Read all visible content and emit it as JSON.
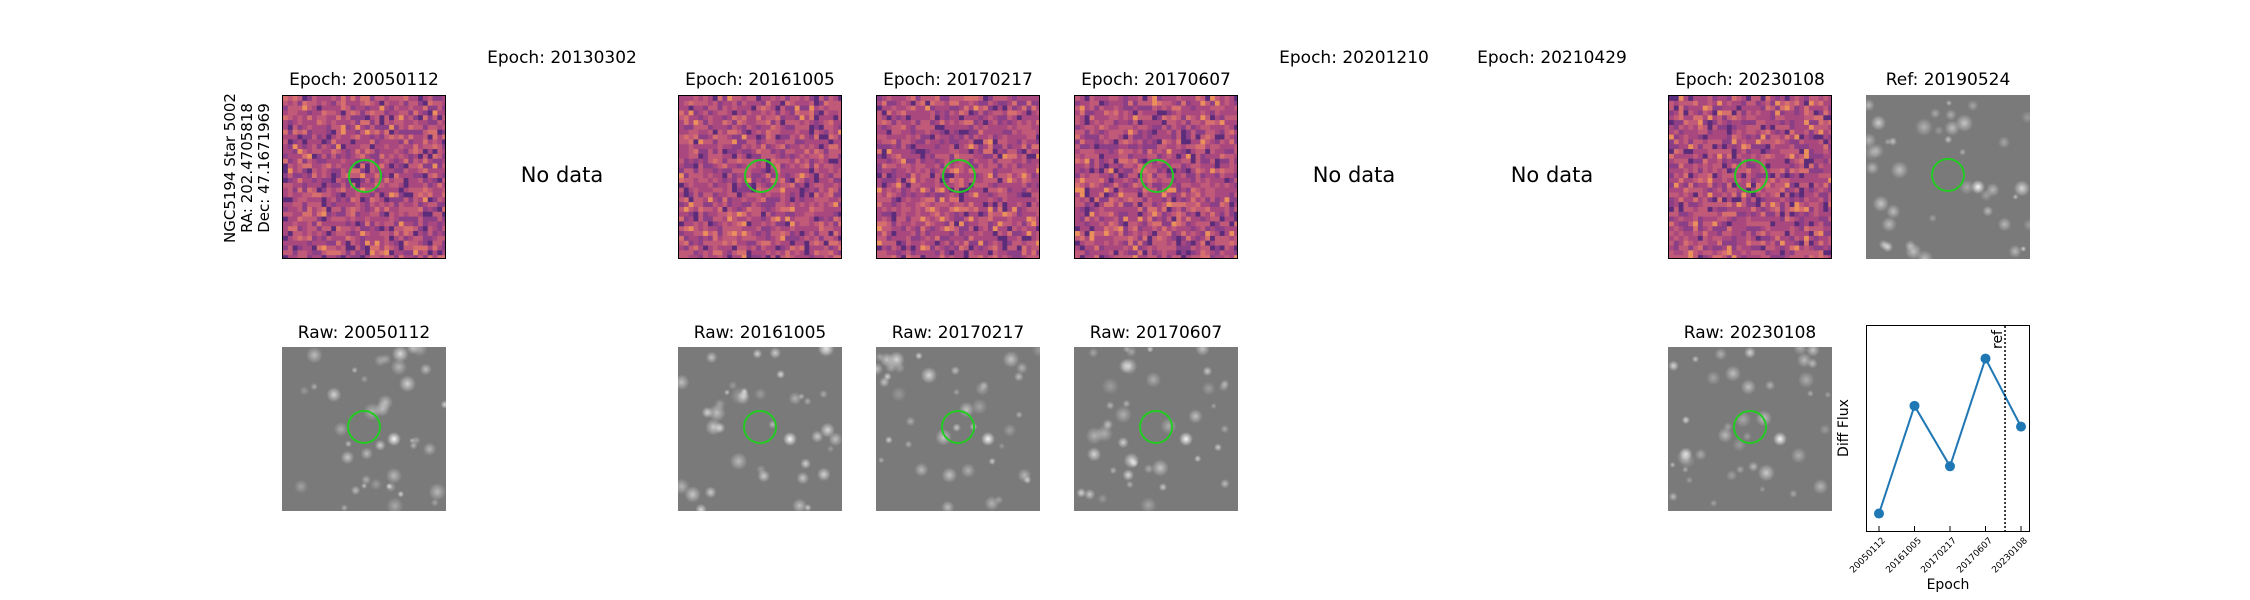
{
  "object_label": {
    "name": "NGC5194 Star 5002",
    "ra": "RA: 202.4705818",
    "dec": "Dec: 47.1671969"
  },
  "top_row": [
    {
      "title": "Epoch: 20050112",
      "has_data": true
    },
    {
      "title": "Epoch: 20130302",
      "has_data": false,
      "no_data_text": "No data"
    },
    {
      "title": "Epoch: 20161005",
      "has_data": true
    },
    {
      "title": "Epoch: 20170217",
      "has_data": true
    },
    {
      "title": "Epoch: 20170607",
      "has_data": true
    },
    {
      "title": "Epoch: 20201210",
      "has_data": false,
      "no_data_text": "No data"
    },
    {
      "title": "Epoch: 20210429",
      "has_data": false,
      "no_data_text": "No data"
    },
    {
      "title": "Epoch: 20230108",
      "has_data": true
    },
    {
      "title": "Ref: 20190524",
      "has_data": true,
      "kind": "reference"
    }
  ],
  "bottom_row": [
    {
      "title": "Raw: 20050112",
      "column": 0
    },
    {
      "title": "Raw: 20161005",
      "column": 2
    },
    {
      "title": "Raw: 20170217",
      "column": 3
    },
    {
      "title": "Raw: 20170607",
      "column": 4
    },
    {
      "title": "Raw: 20230108",
      "column": 7
    }
  ],
  "colors": {
    "diff_base": "#b54f77",
    "raw_base": "#777777",
    "circle": "#22cc22",
    "line": "#1f77b4"
  },
  "chart_data": {
    "type": "line",
    "xlabel": "Epoch",
    "ylabel": "Diff Flux",
    "categories": [
      "20050112",
      "20161005",
      "20170217",
      "20170607",
      "20230108"
    ],
    "values": [
      0.05,
      0.62,
      0.3,
      0.87,
      0.51
    ],
    "ylim": [
      0,
      1
    ],
    "ref_line": {
      "label": "ref",
      "position_between": [
        "20170607",
        "20230108"
      ],
      "fraction": 0.55
    }
  }
}
